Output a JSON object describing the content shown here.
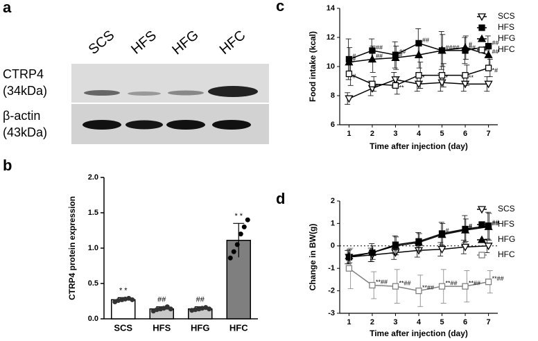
{
  "blot": {
    "panel": "a",
    "lanes": [
      "SCS",
      "HFS",
      "HFG",
      "HFC"
    ],
    "rows": [
      {
        "name": "CTRP4",
        "size": "(34kDa)"
      },
      {
        "name": "β-actin",
        "size": "(43kDa)"
      }
    ]
  },
  "chart_data": [
    {
      "type": "bar",
      "panel": "b",
      "ylabel": "CTRP4 protein expression",
      "categories": [
        "SCS",
        "HFS",
        "HFG",
        "HFC"
      ],
      "values": [
        0.27,
        0.14,
        0.14,
        1.11
      ],
      "errors": [
        0.03,
        0.03,
        0.03,
        0.24
      ],
      "colors": [
        "#ffffff",
        "#c8c8c8",
        "#c8c8c8",
        "#7f7f7f"
      ],
      "annotations": [
        "* *",
        "##",
        "##",
        "* *"
      ],
      "points": [
        [
          0.24,
          0.26,
          0.27,
          0.28,
          0.29,
          0.27
        ],
        [
          0.11,
          0.13,
          0.14,
          0.15,
          0.17,
          0.14
        ],
        [
          0.12,
          0.13,
          0.14,
          0.15,
          0.16,
          0.14
        ],
        [
          0.86,
          0.95,
          1.05,
          1.2,
          1.3,
          1.4
        ]
      ],
      "ylim": [
        0,
        2.0
      ],
      "yticks": [
        {
          "value": 0,
          "label": "0.0"
        },
        {
          "value": 0.5,
          "label": "0.5"
        },
        {
          "value": 1.0,
          "label": "1.0"
        },
        {
          "value": 1.5,
          "label": "1.5"
        },
        {
          "value": 2.0,
          "label": "2.0"
        }
      ]
    },
    {
      "type": "line",
      "panel": "c",
      "ylabel": "Food intake (kcal)",
      "xlabel": "Time after injection (day)",
      "x": [
        1,
        2,
        3,
        4,
        5,
        6,
        7
      ],
      "xlim": [
        0.6,
        7.4
      ],
      "xticks": [
        1,
        2,
        3,
        4,
        5,
        6,
        7
      ],
      "ylim": [
        6,
        14
      ],
      "yticks": [
        6,
        8,
        10,
        12,
        14
      ],
      "series": [
        {
          "name": "SCS",
          "color": "#000000",
          "marker": "triangle-down-open",
          "values": [
            7.8,
            8.5,
            9.1,
            8.8,
            8.9,
            8.8,
            8.8
          ],
          "errors": [
            0.4,
            0.5,
            0.5,
            0.5,
            0.6,
            0.5,
            0.5
          ],
          "annotations": [
            null,
            null,
            null,
            null,
            null,
            null,
            null
          ]
        },
        {
          "name": "HFS",
          "color": "#000000",
          "marker": "square",
          "values": [
            10.5,
            11.1,
            10.8,
            11.6,
            11.1,
            11.1,
            11.4
          ],
          "errors": [
            1.4,
            0.8,
            0.9,
            1.0,
            1.3,
            0.9,
            0.7
          ],
          "annotations": [
            "#",
            "##",
            "##",
            "##",
            "####",
            "##",
            "##"
          ]
        },
        {
          "name": "HFG",
          "color": "#000000",
          "marker": "triangle",
          "values": [
            10.3,
            10.5,
            10.6,
            10.8,
            11.1,
            11.3,
            10.8
          ],
          "errors": [
            1.0,
            0.9,
            0.8,
            0.9,
            1.1,
            0.8,
            0.8
          ],
          "annotations": [
            "#",
            "##",
            "#",
            null,
            null,
            "#",
            "##"
          ]
        },
        {
          "name": "HFC",
          "color": "#000000",
          "marker": "square-open",
          "values": [
            9.5,
            8.8,
            8.7,
            9.4,
            9.4,
            9.4,
            9.9
          ],
          "errors": [
            0.8,
            0.5,
            0.6,
            0.9,
            0.8,
            0.7,
            0.6
          ],
          "annotations": [
            "#",
            "**",
            "**",
            "*",
            "*",
            "**",
            "*#"
          ]
        }
      ]
    },
    {
      "type": "line",
      "panel": "d",
      "ylabel": "Change in BW(g)",
      "xlabel": "Time after injection (day)",
      "x": [
        1,
        2,
        3,
        4,
        5,
        6,
        7
      ],
      "xlim": [
        0.6,
        7.4
      ],
      "xticks": [
        1,
        2,
        3,
        4,
        5,
        6,
        7
      ],
      "ylim": [
        -3,
        2
      ],
      "yticks": [
        -3,
        -2,
        -1,
        0,
        1,
        2
      ],
      "ref_line": 0,
      "series": [
        {
          "name": "SCS",
          "color": "#000000",
          "marker": "triangle-down-open",
          "values": [
            -0.5,
            -0.4,
            -0.3,
            -0.2,
            -0.15,
            -0.05,
            0.0
          ],
          "errors": [
            0.3,
            0.3,
            0.3,
            0.3,
            0.3,
            0.3,
            0.3
          ],
          "annotations": [
            null,
            null,
            null,
            null,
            null,
            null,
            null
          ]
        },
        {
          "name": "HFS",
          "color": "#000000",
          "marker": "square",
          "values": [
            -0.5,
            -0.3,
            0.05,
            0.2,
            0.55,
            0.75,
            0.9
          ],
          "errors": [
            0.3,
            0.4,
            0.4,
            0.4,
            0.5,
            0.6,
            0.6
          ],
          "annotations": [
            null,
            null,
            null,
            null,
            "#",
            "#",
            "##"
          ]
        },
        {
          "name": "HFG",
          "color": "#000000",
          "marker": "triangle",
          "values": [
            -0.45,
            -0.3,
            0.0,
            0.15,
            0.5,
            0.7,
            0.85
          ],
          "errors": [
            0.3,
            0.3,
            0.4,
            0.4,
            0.5,
            0.5,
            0.6
          ],
          "annotations": [
            null,
            null,
            null,
            null,
            null,
            "#",
            "##"
          ]
        },
        {
          "name": "HFC",
          "color": "#808080",
          "marker": "square-open",
          "values": [
            -1.0,
            -1.75,
            -1.8,
            -2.0,
            -1.8,
            -1.8,
            -1.6
          ],
          "errors": [
            0.9,
            0.6,
            0.75,
            0.7,
            0.75,
            0.7,
            0.5
          ],
          "annotations": [
            null,
            "**##",
            "**##",
            "**##",
            "**##",
            "**##",
            "**##"
          ]
        }
      ]
    }
  ]
}
